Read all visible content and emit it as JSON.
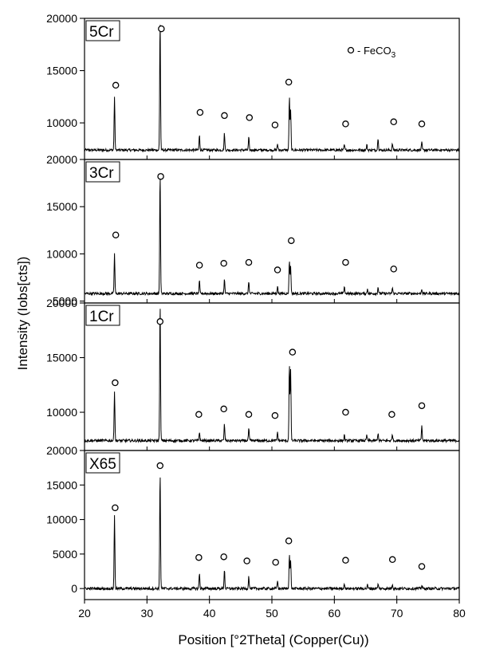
{
  "chart_data": {
    "type": "line",
    "xlabel": "Position [°2Theta] (Copper(Cu))",
    "ylabel": "Intensity (Iobs[cts])",
    "xlim": [
      20,
      80
    ],
    "x_ticks": [
      "20",
      "30",
      "40",
      "50",
      "60",
      "70",
      "80"
    ],
    "legend": {
      "marker": "o",
      "label_main": "- FeCO",
      "label_sub": "3",
      "placement": "top-right of top panel"
    },
    "panels": [
      {
        "name": "5Cr",
        "ylim": [
          6500,
          20000
        ],
        "y_ticks": [
          "20000",
          "15000",
          "10000"
        ],
        "tick_values": [
          20000,
          15000,
          10000
        ],
        "baseline": 7400,
        "peaks": [
          {
            "x": 24.8,
            "y": 12500
          },
          {
            "x": 32.1,
            "y": 20000
          },
          {
            "x": 38.4,
            "y": 8800
          },
          {
            "x": 42.4,
            "y": 9000
          },
          {
            "x": 46.3,
            "y": 8600
          },
          {
            "x": 50.9,
            "y": 8000
          },
          {
            "x": 52.8,
            "y": 12500
          },
          {
            "x": 53.0,
            "y": 11200
          },
          {
            "x": 61.6,
            "y": 7900
          },
          {
            "x": 65.2,
            "y": 7900
          },
          {
            "x": 67.0,
            "y": 8600
          },
          {
            "x": 69.3,
            "y": 8000
          },
          {
            "x": 74.0,
            "y": 8100
          }
        ],
        "markers": [
          {
            "x": 25.0,
            "y": 13600
          },
          {
            "x": 32.3,
            "y": 19000
          },
          {
            "x": 38.5,
            "y": 11000
          },
          {
            "x": 42.4,
            "y": 10700
          },
          {
            "x": 46.4,
            "y": 10500
          },
          {
            "x": 50.5,
            "y": 9800
          },
          {
            "x": 52.7,
            "y": 13900
          },
          {
            "x": 61.8,
            "y": 9900
          },
          {
            "x": 69.5,
            "y": 10100
          },
          {
            "x": 74.0,
            "y": 9900
          }
        ]
      },
      {
        "name": "3Cr",
        "ylim": [
          4800,
          20000
        ],
        "y_ticks": [
          "20000",
          "15000",
          "10000",
          "5000"
        ],
        "tick_values": [
          20000,
          15000,
          10000,
          5000
        ],
        "baseline": 5800,
        "peaks": [
          {
            "x": 24.8,
            "y": 10000
          },
          {
            "x": 32.1,
            "y": 18600
          },
          {
            "x": 38.4,
            "y": 7100
          },
          {
            "x": 42.4,
            "y": 7300
          },
          {
            "x": 46.3,
            "y": 7100
          },
          {
            "x": 50.9,
            "y": 6600
          },
          {
            "x": 52.8,
            "y": 9400
          },
          {
            "x": 53.0,
            "y": 8600
          },
          {
            "x": 61.6,
            "y": 6600
          },
          {
            "x": 65.3,
            "y": 6300
          },
          {
            "x": 67.0,
            "y": 6500
          },
          {
            "x": 69.3,
            "y": 6400
          },
          {
            "x": 74.0,
            "y": 6300
          }
        ],
        "markers": [
          {
            "x": 25.0,
            "y": 12000
          },
          {
            "x": 32.2,
            "y": 18200
          },
          {
            "x": 38.4,
            "y": 8800
          },
          {
            "x": 42.3,
            "y": 9000
          },
          {
            "x": 46.3,
            "y": 9100
          },
          {
            "x": 50.9,
            "y": 8300
          },
          {
            "x": 53.1,
            "y": 11400
          },
          {
            "x": 61.8,
            "y": 9100
          },
          {
            "x": 69.5,
            "y": 8400
          }
        ]
      },
      {
        "name": "1Cr",
        "ylim": [
          6500,
          20000
        ],
        "y_ticks": [
          "20000",
          "15000",
          "10000"
        ],
        "tick_values": [
          20000,
          15000,
          10000
        ],
        "baseline": 7400,
        "peaks": [
          {
            "x": 24.8,
            "y": 12000
          },
          {
            "x": 32.1,
            "y": 20000
          },
          {
            "x": 38.4,
            "y": 8200
          },
          {
            "x": 42.4,
            "y": 8900
          },
          {
            "x": 46.3,
            "y": 8500
          },
          {
            "x": 50.9,
            "y": 8200
          },
          {
            "x": 52.8,
            "y": 14400
          },
          {
            "x": 53.0,
            "y": 13800
          },
          {
            "x": 61.6,
            "y": 7900
          },
          {
            "x": 65.2,
            "y": 7900
          },
          {
            "x": 67.0,
            "y": 8100
          },
          {
            "x": 69.3,
            "y": 8000
          },
          {
            "x": 74.0,
            "y": 8800
          }
        ],
        "markers": [
          {
            "x": 24.9,
            "y": 12700
          },
          {
            "x": 32.1,
            "y": 18300
          },
          {
            "x": 38.3,
            "y": 9800
          },
          {
            "x": 42.3,
            "y": 10300
          },
          {
            "x": 46.3,
            "y": 9800
          },
          {
            "x": 50.5,
            "y": 9700
          },
          {
            "x": 53.3,
            "y": 15500
          },
          {
            "x": 61.8,
            "y": 10000
          },
          {
            "x": 69.2,
            "y": 9800
          },
          {
            "x": 74.0,
            "y": 10600
          }
        ]
      },
      {
        "name": "X65",
        "ylim": [
          -1600,
          20000
        ],
        "y_ticks": [
          "20000",
          "15000",
          "10000",
          "5000",
          "0"
        ],
        "tick_values": [
          20000,
          15000,
          10000,
          5000,
          0
        ],
        "baseline": 0,
        "peaks": [
          {
            "x": 24.8,
            "y": 10500
          },
          {
            "x": 32.1,
            "y": 17000
          },
          {
            "x": 38.4,
            "y": 2200
          },
          {
            "x": 42.4,
            "y": 2800
          },
          {
            "x": 46.3,
            "y": 1800
          },
          {
            "x": 50.9,
            "y": 1100
          },
          {
            "x": 52.8,
            "y": 5000
          },
          {
            "x": 53.0,
            "y": 4000
          },
          {
            "x": 61.6,
            "y": 800
          },
          {
            "x": 65.3,
            "y": 500
          },
          {
            "x": 67.0,
            "y": 600
          },
          {
            "x": 69.3,
            "y": 700
          },
          {
            "x": 74.0,
            "y": 500
          }
        ],
        "markers": [
          {
            "x": 24.9,
            "y": 11700
          },
          {
            "x": 32.1,
            "y": 17800
          },
          {
            "x": 38.3,
            "y": 4500
          },
          {
            "x": 42.3,
            "y": 4600
          },
          {
            "x": 46.0,
            "y": 4000
          },
          {
            "x": 50.6,
            "y": 3800
          },
          {
            "x": 52.7,
            "y": 6900
          },
          {
            "x": 61.8,
            "y": 4100
          },
          {
            "x": 69.3,
            "y": 4200
          },
          {
            "x": 74.0,
            "y": 3200
          }
        ]
      }
    ]
  }
}
